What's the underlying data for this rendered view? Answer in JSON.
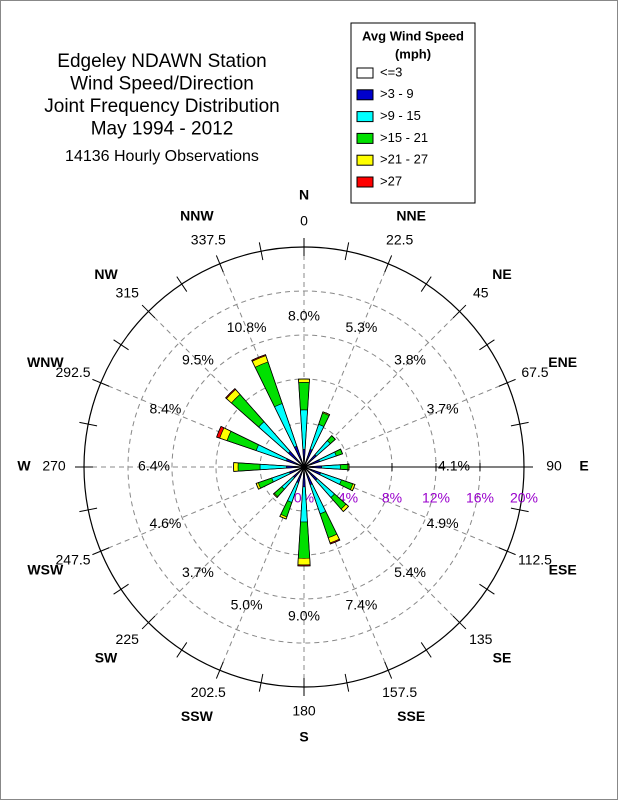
{
  "chart_data": {
    "type": "windrose",
    "title": [
      "Edgeley NDAWN Station",
      "Wind Speed/Direction",
      "Joint Frequency Distribution",
      "May 1994 - 2012"
    ],
    "subtitle": "14136 Hourly Observations",
    "legend_title": "Avg Wind Speed",
    "legend_subtitle": "(mph)",
    "directions": [
      "N",
      "NNE",
      "NE",
      "ENE",
      "E",
      "ESE",
      "SE",
      "SSE",
      "S",
      "SSW",
      "SW",
      "WSW",
      "W",
      "WNW",
      "NW",
      "NNW"
    ],
    "degrees": [
      0,
      22.5,
      45,
      67.5,
      90,
      112.5,
      135,
      157.5,
      180,
      202.5,
      225,
      247.5,
      270,
      292.5,
      315,
      337.5
    ],
    "totals": [
      8.0,
      5.3,
      3.8,
      3.7,
      4.1,
      4.9,
      5.4,
      7.4,
      9.0,
      5.0,
      3.7,
      4.6,
      6.4,
      8.4,
      9.5,
      10.8
    ],
    "total_labels": [
      "8.0%",
      "5.3%",
      "3.8%",
      "3.7%",
      "4.1%",
      "4.9%",
      "5.4%",
      "7.4%",
      "9.0%",
      "5.0%",
      "3.7%",
      "4.6%",
      "6.4%",
      "8.4%",
      "9.5%",
      "10.8%"
    ],
    "series": [
      {
        "name": "<=3",
        "color": "#ffffff",
        "values": [
          0.1,
          0.1,
          0.1,
          0.1,
          0.1,
          0.1,
          0.1,
          0.1,
          0.1,
          0.1,
          0.1,
          0.1,
          0.1,
          0.1,
          0.1,
          0.1
        ]
      },
      {
        "name": ">3 - 9",
        "color": "#0000cc",
        "values": [
          1.5,
          1.6,
          1.4,
          1.4,
          1.5,
          1.5,
          1.5,
          1.6,
          1.7,
          1.4,
          1.2,
          1.3,
          1.5,
          1.6,
          1.8,
          1.9
        ]
      },
      {
        "name": ">9 - 15",
        "color": "#00ffff",
        "values": [
          3.6,
          2.4,
          1.7,
          1.6,
          1.7,
          2.0,
          2.1,
          2.8,
          3.2,
          1.9,
          1.4,
          1.7,
          2.4,
          2.9,
          3.6,
          4.1
        ]
      },
      {
        "name": ">15 - 21",
        "color": "#00e000",
        "values": [
          2.5,
          1.1,
          0.6,
          0.6,
          0.7,
          1.1,
          1.4,
          2.3,
          3.3,
          1.4,
          0.9,
          1.3,
          2.0,
          2.8,
          3.3,
          4.0
        ]
      },
      {
        "name": ">21 - 27",
        "color": "#ffff00",
        "values": [
          0.3,
          0.1,
          0,
          0,
          0.1,
          0.2,
          0.3,
          0.5,
          0.6,
          0.2,
          0.1,
          0.2,
          0.4,
          0.7,
          0.6,
          0.6
        ]
      },
      {
        "name": ">27",
        "color": "#ff0000",
        "values": [
          0,
          0,
          0,
          0,
          0,
          0,
          0,
          0.1,
          0.1,
          0,
          0,
          0,
          0,
          0.3,
          0.1,
          0.1
        ]
      }
    ],
    "rlim": [
      0,
      20
    ],
    "rticks": [
      {
        "value": 0,
        "label": "0%"
      },
      {
        "value": 4,
        "label": "4%"
      },
      {
        "value": 8,
        "label": "8%"
      },
      {
        "value": 12,
        "label": "12%"
      },
      {
        "value": 16,
        "label": "16%"
      },
      {
        "value": 20,
        "label": "20%"
      }
    ],
    "grid": true
  }
}
